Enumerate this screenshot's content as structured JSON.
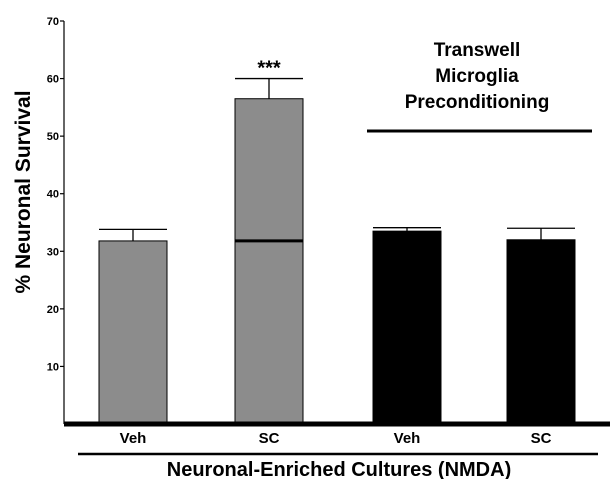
{
  "chart_data": {
    "type": "bar",
    "title": "",
    "ylabel": "% Neuronal Survival",
    "xlabel": "Neuronal-Enriched Cultures (NMDA)",
    "ylim": [
      0,
      70
    ],
    "yticks": [
      10,
      20,
      30,
      40,
      50,
      60,
      70
    ],
    "categories": [
      "Veh",
      "SC",
      "Veh",
      "SC"
    ],
    "values": [
      31.8,
      56.5,
      33.5,
      32.0
    ],
    "errors": [
      2.0,
      3.5,
      0.6,
      2.0
    ],
    "bar_colors": [
      "#8c8c8c",
      "#8c8c8c",
      "#000000",
      "#000000"
    ],
    "reference_line_value": 31.8,
    "significance": {
      "category_index": 1,
      "label": "***"
    },
    "annotation": {
      "lines": [
        "Transwell",
        "Microglia",
        "Preconditioning"
      ],
      "applies_to_categories": [
        2,
        3
      ]
    },
    "grid": false,
    "legend": "none"
  }
}
